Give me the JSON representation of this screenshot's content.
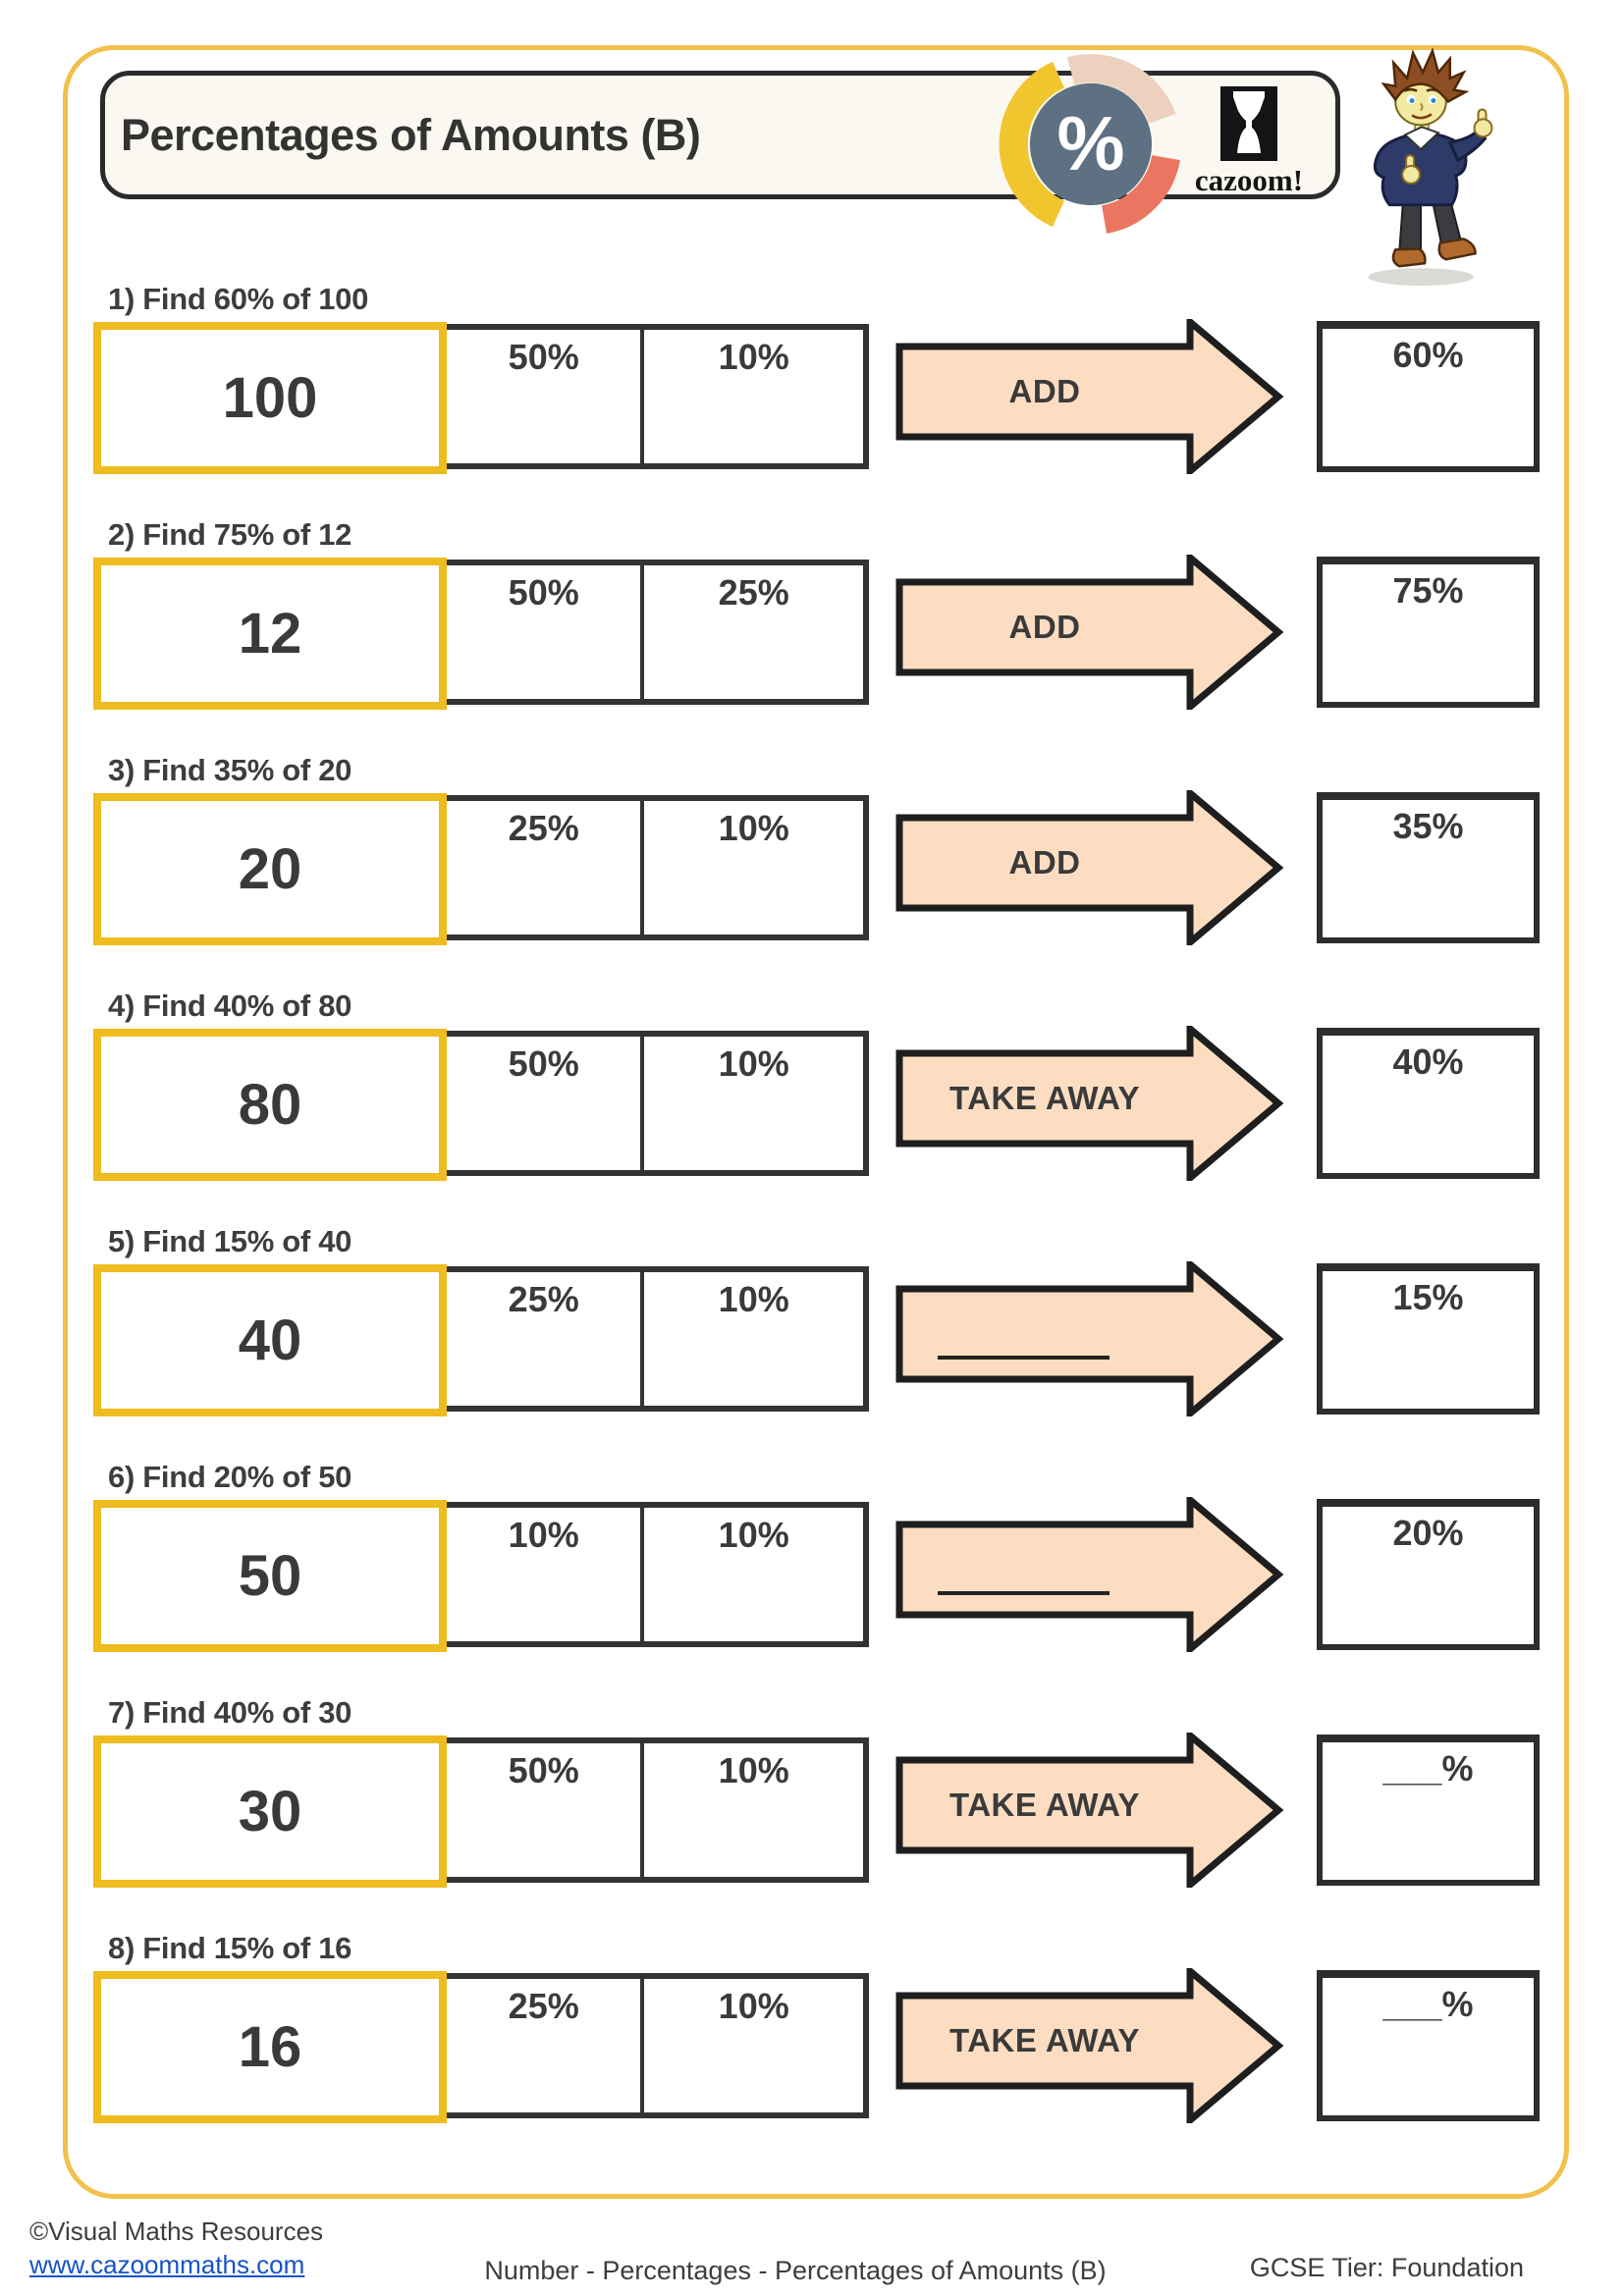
{
  "header": {
    "title": "Percentages of Amounts (B)",
    "badge_symbol": "%",
    "logo_text": "cazoom!"
  },
  "rows": [
    {
      "question": "1) Find 60% of 100",
      "amount": "100",
      "cell1": "50%",
      "cell2": "10%",
      "arrow_label": "ADD",
      "answer_label": "60%"
    },
    {
      "question": "2) Find 75% of 12",
      "amount": "12",
      "cell1": "50%",
      "cell2": "25%",
      "arrow_label": "ADD",
      "answer_label": "75%"
    },
    {
      "question": "3) Find 35% of 20",
      "amount": "20",
      "cell1": "25%",
      "cell2": "10%",
      "arrow_label": "ADD",
      "answer_label": "35%"
    },
    {
      "question": "4) Find 40% of 80",
      "amount": "80",
      "cell1": "50%",
      "cell2": "10%",
      "arrow_label": "TAKE AWAY",
      "answer_label": "40%"
    },
    {
      "question": "5) Find 15% of 40",
      "amount": "40",
      "cell1": "25%",
      "cell2": "10%",
      "arrow_label": "",
      "answer_label": "15%"
    },
    {
      "question": "6) Find 20% of 50",
      "amount": "50",
      "cell1": "10%",
      "cell2": "10%",
      "arrow_label": "",
      "answer_label": "20%"
    },
    {
      "question": "7) Find 40% of 30",
      "amount": "30",
      "cell1": "50%",
      "cell2": "10%",
      "arrow_label": "TAKE AWAY",
      "answer_label": "___%"
    },
    {
      "question": "8) Find 15% of 16",
      "amount": "16",
      "cell1": "25%",
      "cell2": "10%",
      "arrow_label": "TAKE AWAY",
      "answer_label": "___%"
    }
  ],
  "footer": {
    "copyright": "©Visual Maths Resources",
    "website": "www.cazoommaths.com",
    "category": "Number - Percentages - Percentages of Amounts (B)",
    "tier": "GCSE Tier: Foundation"
  },
  "colors": {
    "page-border": "#F1C14C",
    "box-border-gold": "#EEBC1E",
    "arrow-fill": "#FCDDC2",
    "arrow-outline": "#1E1E1E",
    "table-border": "#333333",
    "title-box-bg": "#FAF8F1",
    "badge-circle": "#5D7182",
    "badge-arc-yellow": "#F1C52E",
    "badge-arc-peach": "#EDD0BD",
    "badge-arc-salmon": "#EA7662",
    "link-blue": "#1553C9"
  }
}
